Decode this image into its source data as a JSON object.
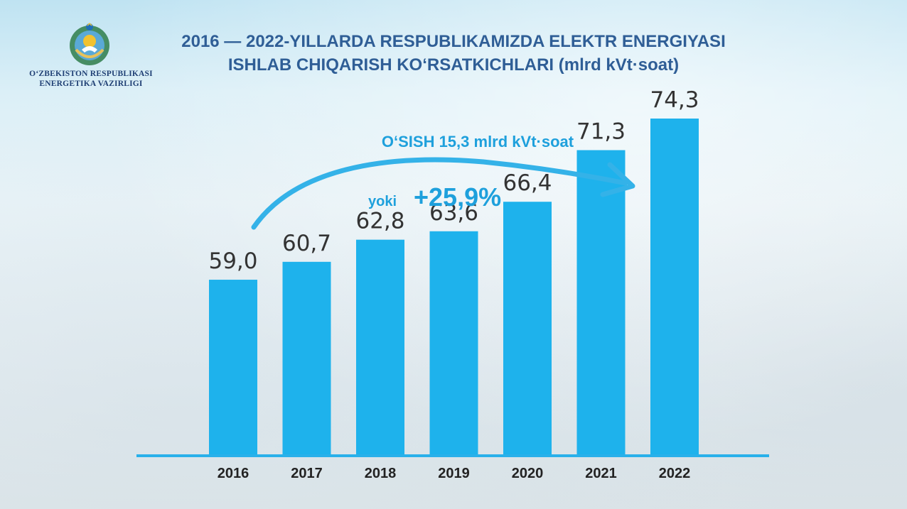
{
  "header": {
    "ministry_line1": "O‘ZBEKISTON RESPUBLIKASI",
    "ministry_line2": "ENERGETIKA VAZIRLIGI",
    "title_line1": "2016 — 2022-YILLARDA RESPUBLIKAMIZDA ELEKTR ENERGIYASI",
    "title_line2": "ISHLAB CHIQARISH KO‘RSATKICHLARI (mlrd kVt·soat)"
  },
  "annotation": {
    "growth_text": "O‘SISH 15,3 mlrd kVt·soat",
    "or_text": "yoki",
    "percent_text": "+25,9%"
  },
  "colors": {
    "bar": "#1eb2ec",
    "arrow": "#34b2e8",
    "title": "#2f5e96",
    "baseline": "#29b0ea"
  },
  "chart_data": {
    "type": "bar",
    "categories": [
      "2016",
      "2017",
      "2018",
      "2019",
      "2020",
      "2021",
      "2022"
    ],
    "values": [
      59.0,
      60.7,
      62.8,
      63.6,
      66.4,
      71.3,
      74.3
    ],
    "value_labels": [
      "59,0",
      "60,7",
      "62,8",
      "63,6",
      "66,4",
      "71,3",
      "74,3"
    ],
    "title": "2016 — 2022-YILLARDA RESPUBLIKAMIZDA ELEKTR ENERGIYASI ISHLAB CHIQARISH KO‘RSATKICHLARI (mlrd kVt·soat)",
    "xlabel": "",
    "ylabel": "",
    "grid": false,
    "legend": "none"
  }
}
